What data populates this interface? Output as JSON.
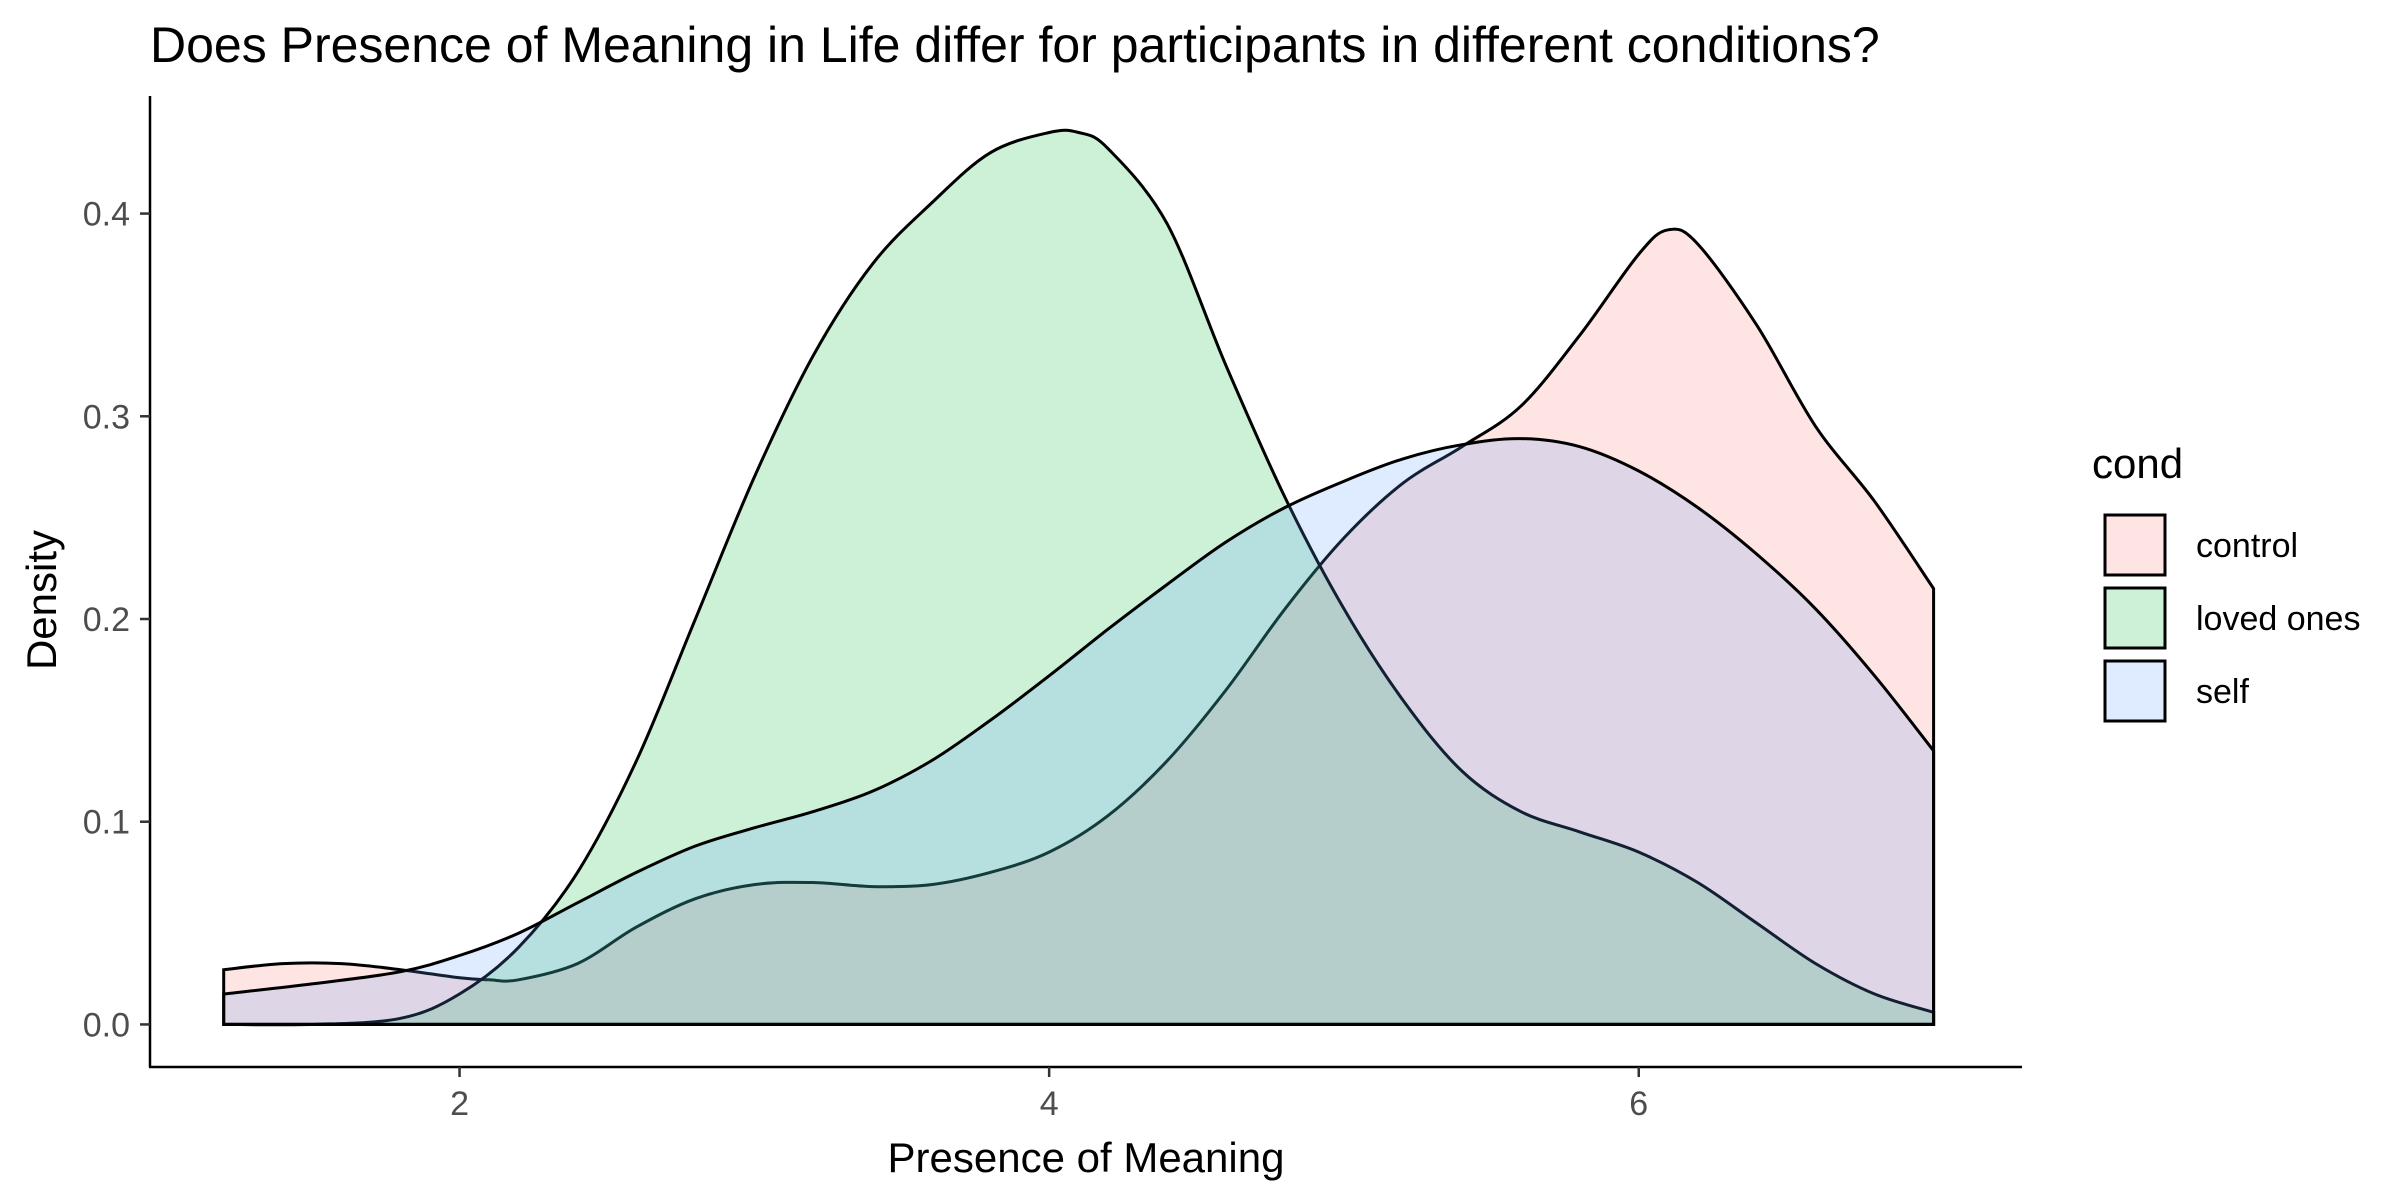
{
  "chart_data": {
    "type": "area",
    "title": "Does Presence of Meaning in Life differ for participants in different conditions?",
    "xlabel": "Presence of Meaning",
    "ylabel": "Density",
    "xlim": [
      0.95,
      7.3
    ],
    "ylim": [
      -0.021,
      0.458
    ],
    "x_ticks": [
      2,
      4,
      6
    ],
    "x_tick_labels": [
      "2",
      "4",
      "6"
    ],
    "y_ticks": [
      0.0,
      0.1,
      0.2,
      0.3,
      0.4
    ],
    "y_tick_labels": [
      "0.0",
      "0.1",
      "0.2",
      "0.3",
      "0.4"
    ],
    "grid": false,
    "legend": {
      "title": "cond",
      "placement": "right"
    },
    "series": [
      {
        "name": "control",
        "color": "#F8766D",
        "points": [
          [
            1.2,
            0.027
          ],
          [
            1.4,
            0.03
          ],
          [
            1.6,
            0.03
          ],
          [
            1.8,
            0.027
          ],
          [
            2.0,
            0.023
          ],
          [
            2.1,
            0.022
          ],
          [
            2.2,
            0.022
          ],
          [
            2.4,
            0.03
          ],
          [
            2.6,
            0.048
          ],
          [
            2.8,
            0.062
          ],
          [
            3.0,
            0.069
          ],
          [
            3.2,
            0.07
          ],
          [
            3.4,
            0.068
          ],
          [
            3.6,
            0.069
          ],
          [
            3.8,
            0.075
          ],
          [
            4.0,
            0.085
          ],
          [
            4.2,
            0.103
          ],
          [
            4.4,
            0.13
          ],
          [
            4.6,
            0.165
          ],
          [
            4.8,
            0.205
          ],
          [
            5.0,
            0.24
          ],
          [
            5.2,
            0.267
          ],
          [
            5.4,
            0.285
          ],
          [
            5.6,
            0.305
          ],
          [
            5.8,
            0.34
          ],
          [
            6.0,
            0.38
          ],
          [
            6.1,
            0.392
          ],
          [
            6.2,
            0.385
          ],
          [
            6.4,
            0.345
          ],
          [
            6.6,
            0.295
          ],
          [
            6.8,
            0.258
          ],
          [
            7.0,
            0.215
          ]
        ]
      },
      {
        "name": "loved ones",
        "color": "#00BA38",
        "points": [
          [
            1.2,
            0.0
          ],
          [
            1.5,
            0.0
          ],
          [
            1.8,
            0.003
          ],
          [
            2.0,
            0.015
          ],
          [
            2.2,
            0.038
          ],
          [
            2.4,
            0.075
          ],
          [
            2.6,
            0.13
          ],
          [
            2.8,
            0.2
          ],
          [
            3.0,
            0.27
          ],
          [
            3.2,
            0.33
          ],
          [
            3.4,
            0.375
          ],
          [
            3.6,
            0.405
          ],
          [
            3.8,
            0.43
          ],
          [
            4.0,
            0.44
          ],
          [
            4.1,
            0.44
          ],
          [
            4.2,
            0.432
          ],
          [
            4.4,
            0.395
          ],
          [
            4.6,
            0.325
          ],
          [
            4.8,
            0.26
          ],
          [
            5.0,
            0.205
          ],
          [
            5.2,
            0.16
          ],
          [
            5.4,
            0.125
          ],
          [
            5.6,
            0.105
          ],
          [
            5.8,
            0.095
          ],
          [
            6.0,
            0.085
          ],
          [
            6.2,
            0.07
          ],
          [
            6.4,
            0.05
          ],
          [
            6.6,
            0.03
          ],
          [
            6.8,
            0.015
          ],
          [
            7.0,
            0.006
          ]
        ]
      },
      {
        "name": "self",
        "color": "#619CFF",
        "points": [
          [
            1.2,
            0.015
          ],
          [
            1.5,
            0.02
          ],
          [
            1.8,
            0.026
          ],
          [
            2.0,
            0.034
          ],
          [
            2.2,
            0.045
          ],
          [
            2.4,
            0.06
          ],
          [
            2.6,
            0.075
          ],
          [
            2.8,
            0.088
          ],
          [
            3.0,
            0.097
          ],
          [
            3.2,
            0.105
          ],
          [
            3.4,
            0.115
          ],
          [
            3.6,
            0.13
          ],
          [
            3.8,
            0.15
          ],
          [
            4.0,
            0.172
          ],
          [
            4.2,
            0.195
          ],
          [
            4.4,
            0.217
          ],
          [
            4.6,
            0.238
          ],
          [
            4.8,
            0.255
          ],
          [
            5.0,
            0.268
          ],
          [
            5.2,
            0.279
          ],
          [
            5.4,
            0.286
          ],
          [
            5.6,
            0.289
          ],
          [
            5.8,
            0.285
          ],
          [
            6.0,
            0.273
          ],
          [
            6.2,
            0.255
          ],
          [
            6.4,
            0.232
          ],
          [
            6.6,
            0.205
          ],
          [
            6.8,
            0.172
          ],
          [
            7.0,
            0.135
          ]
        ]
      }
    ]
  }
}
